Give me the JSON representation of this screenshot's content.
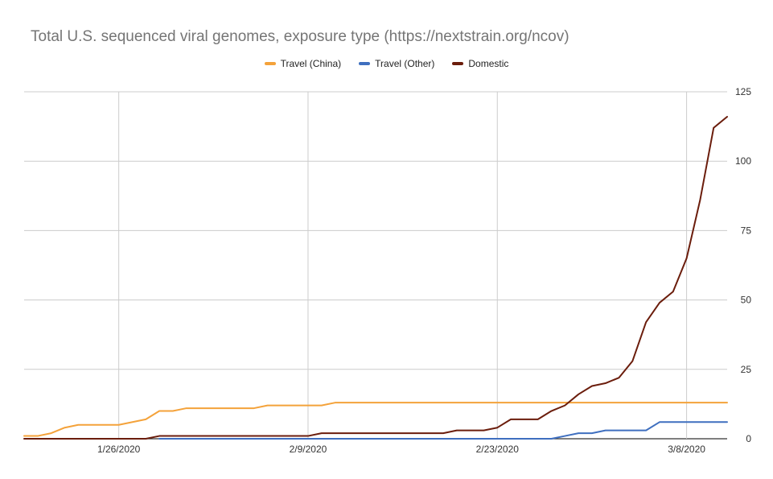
{
  "colors": {
    "travel_china": "#f4a23a",
    "travel_other": "#3f6fbf",
    "domestic": "#6b1d0c",
    "grid": "#cccccc",
    "axis": "#333333",
    "title": "#757575"
  },
  "chart_data": {
    "type": "line",
    "title": "Total U.S. sequenced viral genomes, exposure type (https://nextstrain.org/ncov)",
    "xlabel": "",
    "ylabel": "",
    "x_start": "1/19/2020",
    "x_end": "3/11/2020",
    "x_ticks": [
      "1/26/2020",
      "2/9/2020",
      "2/23/2020",
      "3/8/2020"
    ],
    "y_ticks": [
      0,
      25,
      50,
      75,
      100,
      125
    ],
    "ylim": [
      0,
      125
    ],
    "y_axis_side": "right",
    "grid": true,
    "legend_position": "top",
    "series": [
      {
        "name": "Travel (China)",
        "color_key": "travel_china",
        "points": [
          [
            "1/19/2020",
            1
          ],
          [
            "1/20/2020",
            1
          ],
          [
            "1/21/2020",
            2
          ],
          [
            "1/22/2020",
            4
          ],
          [
            "1/23/2020",
            5
          ],
          [
            "1/26/2020",
            5
          ],
          [
            "1/28/2020",
            7
          ],
          [
            "1/29/2020",
            10
          ],
          [
            "1/30/2020",
            10
          ],
          [
            "1/31/2020",
            11
          ],
          [
            "2/5/2020",
            11
          ],
          [
            "2/6/2020",
            12
          ],
          [
            "2/10/2020",
            12
          ],
          [
            "2/11/2020",
            13
          ],
          [
            "3/11/2020",
            13
          ]
        ]
      },
      {
        "name": "Travel (Other)",
        "color_key": "travel_other",
        "points": [
          [
            "1/29/2020",
            0
          ],
          [
            "2/21/2020",
            0
          ],
          [
            "2/27/2020",
            0
          ],
          [
            "2/28/2020",
            1
          ],
          [
            "2/29/2020",
            2
          ],
          [
            "3/1/2020",
            2
          ],
          [
            "3/2/2020",
            3
          ],
          [
            "3/5/2020",
            3
          ],
          [
            "3/6/2020",
            6
          ],
          [
            "3/11/2020",
            6
          ]
        ]
      },
      {
        "name": "Domestic",
        "color_key": "domestic",
        "points": [
          [
            "1/19/2020",
            0
          ],
          [
            "1/28/2020",
            0
          ],
          [
            "1/29/2020",
            1
          ],
          [
            "2/9/2020",
            1
          ],
          [
            "2/10/2020",
            2
          ],
          [
            "2/19/2020",
            2
          ],
          [
            "2/20/2020",
            3
          ],
          [
            "2/22/2020",
            3
          ],
          [
            "2/23/2020",
            4
          ],
          [
            "2/24/2020",
            7
          ],
          [
            "2/26/2020",
            7
          ],
          [
            "2/27/2020",
            10
          ],
          [
            "2/28/2020",
            12
          ],
          [
            "2/29/2020",
            16
          ],
          [
            "3/1/2020",
            19
          ],
          [
            "3/2/2020",
            20
          ],
          [
            "3/3/2020",
            22
          ],
          [
            "3/4/2020",
            28
          ],
          [
            "3/5/2020",
            42
          ],
          [
            "3/6/2020",
            49
          ],
          [
            "3/7/2020",
            53
          ],
          [
            "3/8/2020",
            65
          ],
          [
            "3/9/2020",
            86
          ],
          [
            "3/10/2020",
            112
          ],
          [
            "3/11/2020",
            116
          ]
        ]
      }
    ]
  }
}
